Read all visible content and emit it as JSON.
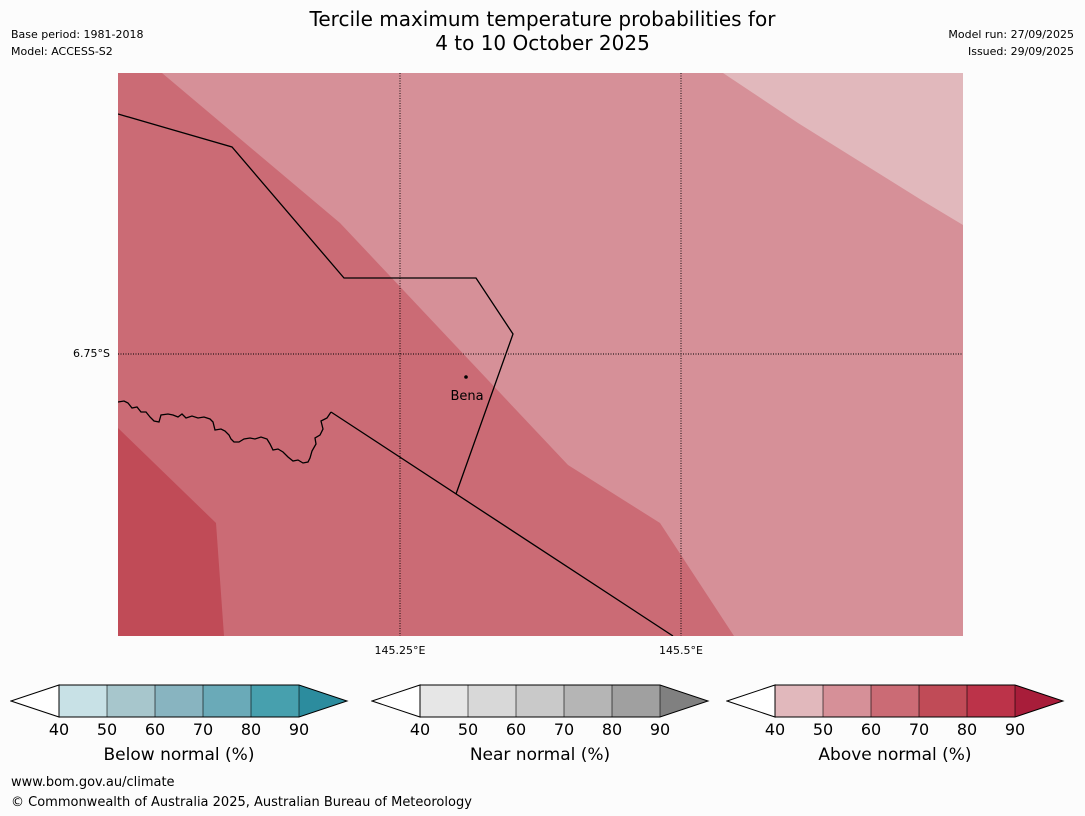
{
  "header": {
    "title_line1": "Tercile maximum temperature probabilities for",
    "title_line2": "4 to 10 October 2025",
    "base_period": "Base period: 1981-2018",
    "model": "Model: ACCESS-S2",
    "model_run": "Model run: 27/09/2025",
    "issued": "Issued: 29/09/2025"
  },
  "map": {
    "lat_label": "6.75°S",
    "lon_labels": [
      "145.25°E",
      "145.5°E"
    ],
    "town": "Bena",
    "colors": {
      "50-60": "#d69098",
      "60-70": "#cb6b75",
      "70-80": "#c04b57",
      "40-50": "#e1b8bc"
    }
  },
  "colorbars": [
    {
      "name": "below",
      "label": "Below normal (%)",
      "ticks": [
        "40",
        "50",
        "60",
        "70",
        "80",
        "90"
      ],
      "colors": [
        "#c8e1e6",
        "#a7c6cc",
        "#88b4c0",
        "#6aaab8",
        "#47a0ae"
      ],
      "extend_color": "#2c8c9e"
    },
    {
      "name": "near",
      "label": "Near normal (%)",
      "ticks": [
        "40",
        "50",
        "60",
        "70",
        "80",
        "90"
      ],
      "colors": [
        "#e6e6e6",
        "#d8d8d8",
        "#c9c9c9",
        "#b5b5b5",
        "#a0a0a0"
      ],
      "extend_color": "#808080"
    },
    {
      "name": "above",
      "label": "Above normal (%)",
      "ticks": [
        "40",
        "50",
        "60",
        "70",
        "80",
        "90"
      ],
      "colors": [
        "#e1b8bc",
        "#d69098",
        "#cb6b75",
        "#c04b57",
        "#bc3349"
      ],
      "extend_color": "#a81d3a"
    }
  ],
  "footer": {
    "url": "www.bom.gov.au/climate",
    "copyright": "© Commonwealth of Australia 2025, Australian Bureau of Meteorology"
  }
}
